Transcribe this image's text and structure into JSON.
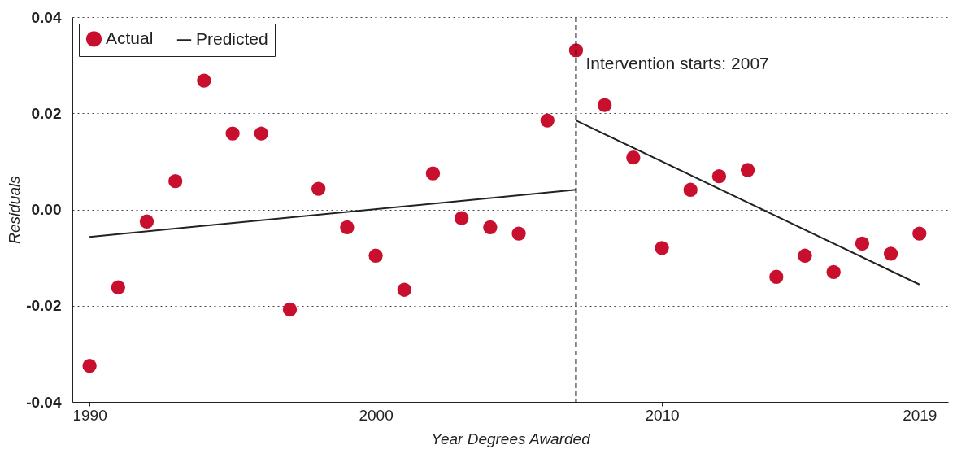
{
  "chart_data": {
    "type": "scatter",
    "xlabel": "Year Degrees Awarded",
    "ylabel": "Residuals",
    "xlim": [
      1989.4,
      2020
    ],
    "xticks": [
      1990,
      2000,
      2010,
      2019
    ],
    "ylim": [
      -0.04,
      0.04
    ],
    "yticks": [
      -0.04,
      -0.02,
      {
        "value": 0,
        "label": "0.00"
      },
      0.02,
      0.04
    ],
    "grid": "y",
    "legend": "top left",
    "ref_lines": [
      {
        "axis": "x",
        "value": 2007,
        "label": "Intervention starts: 2007",
        "line_style": "dashed",
        "color": "#222222"
      }
    ],
    "series": [
      {
        "name": "Actual",
        "marker": "circle",
        "color": "#c8102e",
        "x": [
          1990,
          1991,
          1992,
          1993,
          1994,
          1995,
          1996,
          1997,
          1998,
          1999,
          2000,
          2001,
          2002,
          2003,
          2004,
          2005,
          2006,
          2007,
          2008,
          2009,
          2010,
          2011,
          2012,
          2013,
          2014,
          2015,
          2016,
          2017,
          2018,
          2019
        ],
        "values": [
          -0.0325,
          -0.0162,
          -0.0025,
          0.0059,
          0.0268,
          0.0158,
          0.0158,
          -0.0208,
          0.0043,
          -0.0037,
          -0.0096,
          -0.0167,
          0.0075,
          -0.0018,
          -0.0037,
          -0.005,
          0.0185,
          0.0331,
          0.0217,
          0.0108,
          -0.008,
          0.0041,
          0.0069,
          0.0082,
          -0.014,
          -0.0096,
          -0.013,
          -0.0071,
          -0.0092,
          -0.005
        ]
      },
      {
        "name": "Predicted",
        "type": "line",
        "color": "#222222",
        "x": [
          1990,
          2007
        ],
        "values": [
          -0.0057,
          0.0041
        ]
      },
      {
        "type": "line",
        "color": "#222222",
        "x": [
          2007,
          2019
        ],
        "values": [
          0.0185,
          -0.0156
        ]
      }
    ]
  }
}
